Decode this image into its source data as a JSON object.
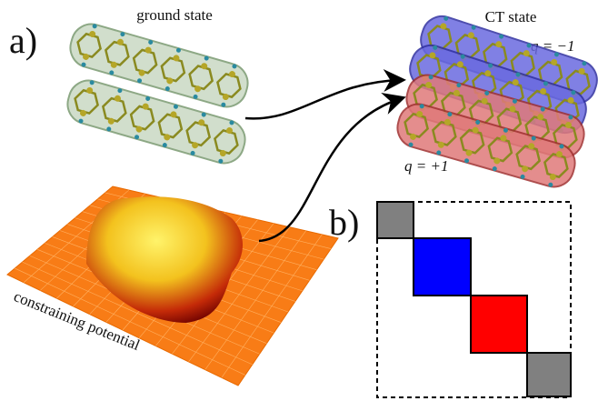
{
  "panel_a": {
    "label": "a)",
    "ground_state": "ground state",
    "ct_state": "CT state",
    "charge_negative": "q = −1",
    "charge_positive": "q = +1",
    "potential": "constraining potential"
  },
  "panel_b": {
    "label": "b)"
  }
}
